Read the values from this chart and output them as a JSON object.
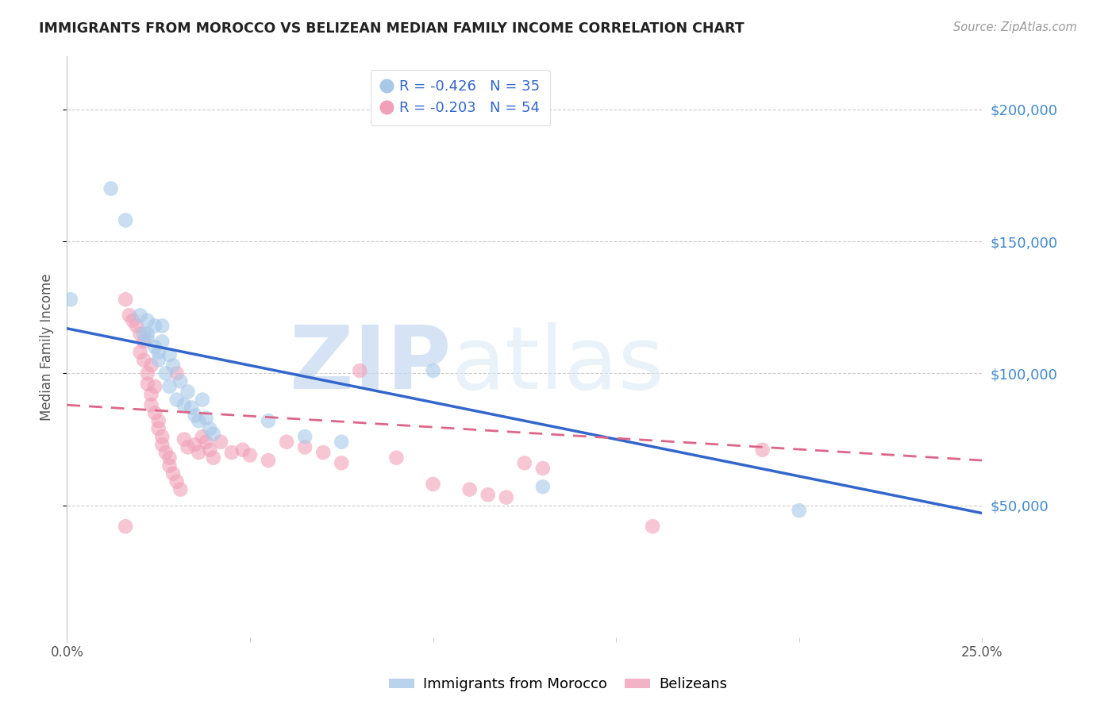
{
  "title": "IMMIGRANTS FROM MOROCCO VS BELIZEAN MEDIAN FAMILY INCOME CORRELATION CHART",
  "source": "Source: ZipAtlas.com",
  "ylabel": "Median Family Income",
  "watermark_zip": "ZIP",
  "watermark_atlas": "atlas",
  "legend_blue_r": "R = -0.426",
  "legend_blue_n": "N = 35",
  "legend_pink_r": "R = -0.203",
  "legend_pink_n": "N = 54",
  "legend_blue_label": "Immigrants from Morocco",
  "legend_pink_label": "Belizeans",
  "blue_color": "#a8c8e8",
  "pink_color": "#f0a0b8",
  "blue_line_color": "#3366cc",
  "pink_line_color": "#dd6688",
  "blue_scatter": [
    [
      0.001,
      128000
    ],
    [
      0.012,
      170000
    ],
    [
      0.016,
      158000
    ],
    [
      0.02,
      122000
    ],
    [
      0.021,
      115000
    ],
    [
      0.022,
      120000
    ],
    [
      0.022,
      113000
    ],
    [
      0.024,
      118000
    ],
    [
      0.024,
      110000
    ],
    [
      0.025,
      108000
    ],
    [
      0.025,
      105000
    ],
    [
      0.026,
      118000
    ],
    [
      0.026,
      112000
    ],
    [
      0.027,
      100000
    ],
    [
      0.028,
      107000
    ],
    [
      0.028,
      95000
    ],
    [
      0.029,
      103000
    ],
    [
      0.03,
      90000
    ],
    [
      0.031,
      97000
    ],
    [
      0.032,
      88000
    ],
    [
      0.033,
      93000
    ],
    [
      0.034,
      87000
    ],
    [
      0.035,
      84000
    ],
    [
      0.036,
      82000
    ],
    [
      0.037,
      90000
    ],
    [
      0.038,
      83000
    ],
    [
      0.039,
      79000
    ],
    [
      0.04,
      77000
    ],
    [
      0.055,
      82000
    ],
    [
      0.065,
      76000
    ],
    [
      0.075,
      74000
    ],
    [
      0.1,
      101000
    ],
    [
      0.13,
      57000
    ],
    [
      0.2,
      48000
    ],
    [
      0.022,
      115000
    ]
  ],
  "pink_scatter": [
    [
      0.016,
      128000
    ],
    [
      0.017,
      122000
    ],
    [
      0.018,
      120000
    ],
    [
      0.019,
      118000
    ],
    [
      0.02,
      115000
    ],
    [
      0.02,
      108000
    ],
    [
      0.021,
      112000
    ],
    [
      0.021,
      105000
    ],
    [
      0.022,
      100000
    ],
    [
      0.022,
      96000
    ],
    [
      0.023,
      103000
    ],
    [
      0.023,
      92000
    ],
    [
      0.023,
      88000
    ],
    [
      0.024,
      95000
    ],
    [
      0.024,
      85000
    ],
    [
      0.025,
      82000
    ],
    [
      0.025,
      79000
    ],
    [
      0.026,
      76000
    ],
    [
      0.026,
      73000
    ],
    [
      0.027,
      70000
    ],
    [
      0.028,
      68000
    ],
    [
      0.028,
      65000
    ],
    [
      0.029,
      62000
    ],
    [
      0.03,
      59000
    ],
    [
      0.03,
      100000
    ],
    [
      0.031,
      56000
    ],
    [
      0.032,
      75000
    ],
    [
      0.033,
      72000
    ],
    [
      0.035,
      73000
    ],
    [
      0.036,
      70000
    ],
    [
      0.037,
      76000
    ],
    [
      0.038,
      74000
    ],
    [
      0.039,
      71000
    ],
    [
      0.04,
      68000
    ],
    [
      0.042,
      74000
    ],
    [
      0.045,
      70000
    ],
    [
      0.048,
      71000
    ],
    [
      0.05,
      69000
    ],
    [
      0.055,
      67000
    ],
    [
      0.06,
      74000
    ],
    [
      0.065,
      72000
    ],
    [
      0.07,
      70000
    ],
    [
      0.075,
      66000
    ],
    [
      0.08,
      101000
    ],
    [
      0.09,
      68000
    ],
    [
      0.1,
      58000
    ],
    [
      0.11,
      56000
    ],
    [
      0.115,
      54000
    ],
    [
      0.12,
      53000
    ],
    [
      0.125,
      66000
    ],
    [
      0.13,
      64000
    ],
    [
      0.16,
      42000
    ],
    [
      0.19,
      71000
    ],
    [
      0.016,
      42000
    ]
  ],
  "blue_trendline": [
    [
      0.0,
      117000
    ],
    [
      0.25,
      47000
    ]
  ],
  "pink_trendline": [
    [
      0.0,
      88000
    ],
    [
      0.25,
      67000
    ]
  ],
  "xlim": [
    0.0,
    0.25
  ],
  "ylim": [
    0,
    220000
  ],
  "yticks": [
    50000,
    100000,
    150000,
    200000
  ],
  "xticks": [
    0.0,
    0.05,
    0.1,
    0.15,
    0.2,
    0.25
  ],
  "background_color": "#ffffff",
  "grid_color": "#cccccc",
  "title_color": "#222222",
  "source_color": "#999999",
  "axis_color": "#cccccc",
  "ylabel_color": "#555555",
  "right_label_color": "#4488cc"
}
